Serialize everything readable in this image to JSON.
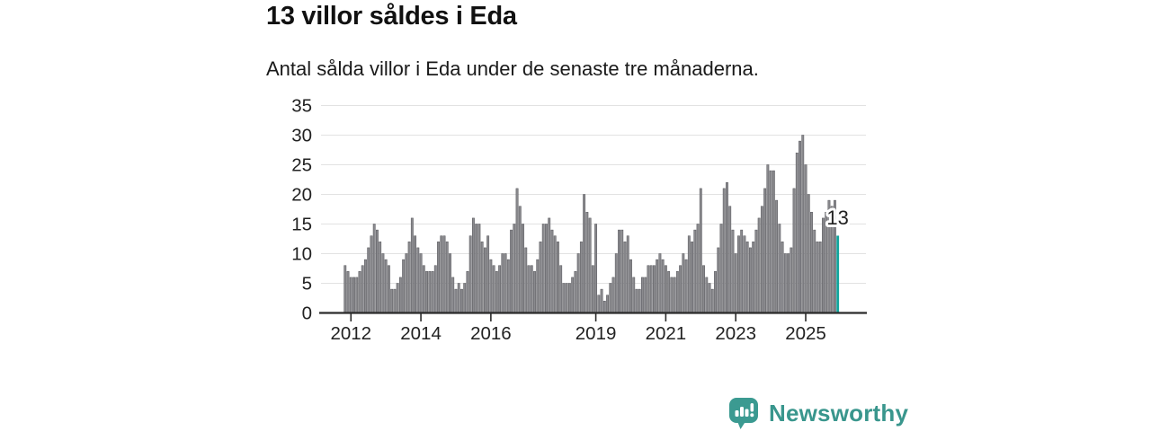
{
  "header": {
    "title": "13 villor såldes i Eda",
    "subtitle": "Antal sålda villor i Eda under de senaste tre månaderna."
  },
  "chart_data": {
    "type": "bar",
    "title": "13 villor såldes i Eda",
    "subtitle": "Antal sålda villor i Eda under de senaste tre månaderna.",
    "x_start": "2011-11",
    "x_interval": "month",
    "values": [
      8,
      7,
      6,
      6,
      6,
      7,
      8,
      9,
      11,
      13,
      15,
      14,
      12,
      10,
      9,
      8,
      4,
      4,
      5,
      6,
      9,
      10,
      12,
      16,
      13,
      11,
      10,
      8,
      7,
      7,
      7,
      8,
      12,
      13,
      13,
      12,
      10,
      6,
      4,
      5,
      4,
      5,
      7,
      13,
      16,
      15,
      15,
      12,
      11,
      13,
      9,
      8,
      7,
      8,
      10,
      10,
      9,
      14,
      15,
      21,
      18,
      15,
      11,
      8,
      8,
      7,
      9,
      12,
      15,
      15,
      16,
      14,
      13,
      12,
      8,
      5,
      5,
      5,
      6,
      7,
      10,
      12,
      20,
      17,
      16,
      8,
      15,
      3,
      4,
      2,
      3,
      5,
      6,
      10,
      14,
      14,
      12,
      13,
      9,
      6,
      4,
      4,
      6,
      6,
      8,
      8,
      8,
      9,
      10,
      9,
      8,
      7,
      6,
      6,
      7,
      8,
      10,
      9,
      13,
      12,
      14,
      15,
      21,
      8,
      6,
      5,
      4,
      7,
      11,
      15,
      21,
      22,
      18,
      14,
      10,
      13,
      14,
      13,
      12,
      11,
      12,
      14,
      16,
      18,
      21,
      25,
      24,
      24,
      19,
      15,
      12,
      10,
      10,
      11,
      21,
      27,
      29,
      30,
      25,
      20,
      17,
      14,
      12,
      12,
      16,
      17,
      19,
      18,
      19,
      13
    ],
    "ylim": [
      0,
      35
    ],
    "yticks": [
      0,
      5,
      10,
      15,
      20,
      25,
      30,
      35
    ],
    "xticks": [
      2012,
      2014,
      2016,
      2019,
      2021,
      2023,
      2025
    ],
    "grid": true,
    "legend": false,
    "bar_color": "#8a8a8e",
    "bar_border": "#55555a",
    "grid_color": "#e2e2e2",
    "axis_color": "#2b2b2b",
    "tick_label_color": "#222222",
    "highlight": {
      "index": 169,
      "value": 13,
      "label": "13",
      "color": "#0ea49b"
    }
  },
  "footer": {
    "brand": "Newsworthy",
    "brand_color": "#39968d",
    "logo_color": "#3b9a91"
  }
}
